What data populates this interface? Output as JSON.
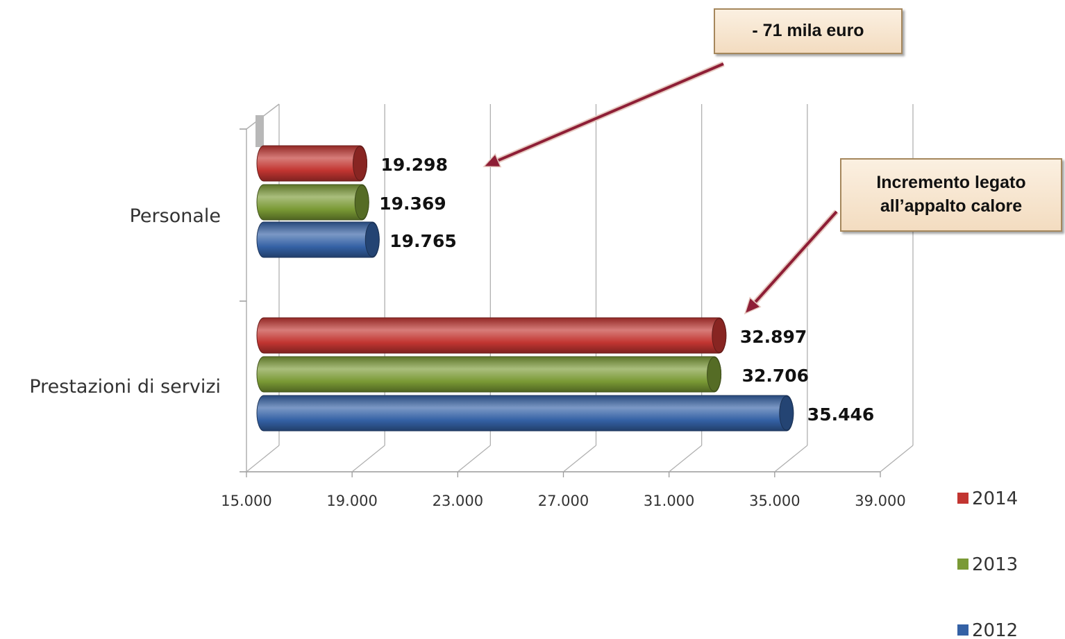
{
  "chart_data": {
    "type": "bar",
    "orientation": "horizontal",
    "style": "3d-cylinder",
    "categories": [
      "Personale",
      "Prestazioni di servizi"
    ],
    "series": [
      {
        "name": "2014",
        "color": "#c23531",
        "values": [
          19298,
          32897
        ],
        "labels": [
          "19.298",
          "32.897"
        ]
      },
      {
        "name": "2013",
        "color": "#7a9a35",
        "values": [
          19369,
          32706
        ],
        "labels": [
          "19.369",
          "32.706"
        ]
      },
      {
        "name": "2012",
        "color": "#3461a5",
        "values": [
          19765,
          35446
        ],
        "labels": [
          "19.765",
          "35.446"
        ]
      }
    ],
    "xlim": [
      15000,
      39000
    ],
    "xticks": [
      15000,
      19000,
      23000,
      27000,
      31000,
      35000,
      39000
    ],
    "xtick_labels": [
      "15.000",
      "19.000",
      "23.000",
      "27.000",
      "31.000",
      "35.000",
      "39.000"
    ],
    "grid": true,
    "legend_position": "right",
    "annotations": [
      {
        "text": "- 71 mila euro",
        "target": "Personale 2014"
      },
      {
        "text": "Incremento legato\nall’appalto calore",
        "target": "Prestazioni di servizi 2014"
      }
    ]
  }
}
